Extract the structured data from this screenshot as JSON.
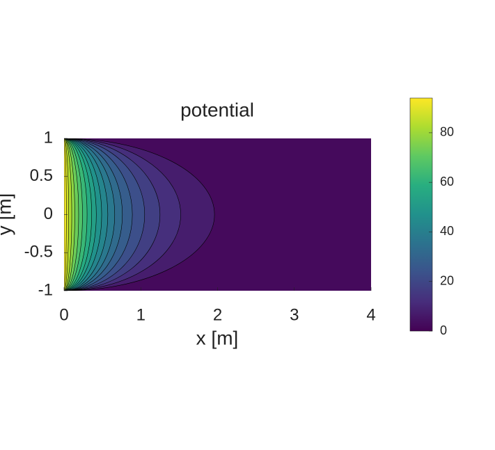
{
  "chart_data": {
    "type": "contour",
    "title": "potential",
    "x_label": "x  [m]",
    "y_label": "y  [m]",
    "xlim": [
      0,
      4
    ],
    "ylim": [
      -1,
      1
    ],
    "xticks": [
      0,
      1,
      2,
      3,
      4
    ],
    "yticks": [
      -1,
      -0.5,
      0,
      0.5,
      1
    ],
    "levels": [
      5,
      10,
      15,
      20,
      25,
      30,
      35,
      40,
      45,
      50,
      55,
      60,
      65,
      70,
      75,
      80,
      85,
      90
    ],
    "x_at_y0": [
      1.96,
      1.52,
      1.25,
      1.05,
      0.89,
      0.76,
      0.66,
      0.57,
      0.49,
      0.42,
      0.36,
      0.3,
      0.24,
      0.19,
      0.14,
      0.1,
      0.06,
      0.03
    ],
    "clim": [
      0,
      94
    ],
    "colorbar_ticks": [
      0,
      20,
      40,
      60,
      80
    ],
    "colormap": "viridis"
  }
}
